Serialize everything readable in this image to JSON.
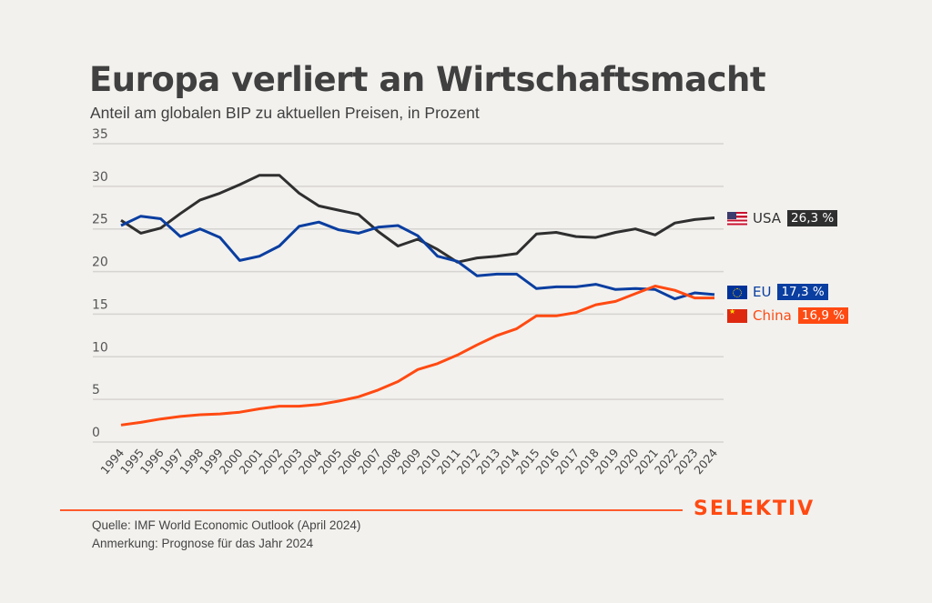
{
  "header": {
    "title": "Europa verliert an Wirtschaftsmacht",
    "subtitle": "Anteil am globalen BIP zu aktuellen Preisen, in Prozent"
  },
  "footer": {
    "source": "Quelle: IMF World Economic Outlook (April 2024)",
    "note": "Anmerkung: Prognose für das Jahr 2024",
    "logo": "SELEKTIV",
    "accent_color": "#ff4a12"
  },
  "legend": [
    {
      "name": "USA",
      "value_label": "26,3 %",
      "flag_icon": "us-flag-icon",
      "color": "#2f2f2f",
      "text_color": "#333333"
    },
    {
      "name": "EU",
      "value_label": "17,3 %",
      "flag_icon": "eu-flag-icon",
      "color": "#0a3ea0",
      "text_color": "#0a3ea0"
    },
    {
      "name": "China",
      "value_label": "16,9 %",
      "flag_icon": "china-flag-icon",
      "color": "#ff4a12",
      "text_color": "#ff4a12"
    }
  ],
  "chart_data": {
    "type": "line",
    "title": "Europa verliert an Wirtschaftsmacht",
    "subtitle": "Anteil am globalen BIP zu aktuellen Preisen, in Prozent",
    "xlabel": "",
    "ylabel": "",
    "ylim": [
      0,
      35
    ],
    "yticks": [
      0,
      5,
      10,
      15,
      20,
      25,
      30,
      35
    ],
    "grid": true,
    "legend_position": "right",
    "x": [
      "1994",
      "1995",
      "1996",
      "1997",
      "1998",
      "1999",
      "2000",
      "2001",
      "2002",
      "2003",
      "2004",
      "2005",
      "2006",
      "2007",
      "2008",
      "2009",
      "2010",
      "2011",
      "2012",
      "2013",
      "2014",
      "2015",
      "2016",
      "2017",
      "2018",
      "2019",
      "2020",
      "2021",
      "2022",
      "2023",
      "2024"
    ],
    "series": [
      {
        "name": "USA",
        "color": "#2f2f2f",
        "values": [
          26.0,
          24.5,
          25.1,
          26.8,
          28.4,
          29.2,
          30.2,
          31.3,
          31.3,
          29.2,
          27.7,
          27.2,
          26.7,
          24.7,
          23.0,
          23.8,
          22.6,
          21.1,
          21.6,
          21.8,
          22.1,
          24.4,
          24.6,
          24.1,
          24.0,
          24.6,
          25.0,
          24.3,
          25.7,
          26.1,
          26.3
        ]
      },
      {
        "name": "EU",
        "color": "#0a3ea0",
        "values": [
          25.4,
          26.5,
          26.2,
          24.1,
          25.0,
          24.0,
          21.3,
          21.8,
          23.0,
          25.3,
          25.8,
          24.9,
          24.5,
          25.2,
          25.4,
          24.2,
          21.8,
          21.2,
          19.5,
          19.7,
          19.7,
          18.0,
          18.2,
          18.2,
          18.5,
          17.9,
          18.0,
          17.9,
          16.8,
          17.5,
          17.3
        ]
      },
      {
        "name": "China",
        "color": "#ff4a12",
        "values": [
          2.0,
          2.3,
          2.7,
          3.0,
          3.2,
          3.3,
          3.5,
          3.9,
          4.2,
          4.2,
          4.4,
          4.8,
          5.3,
          6.1,
          7.1,
          8.5,
          9.2,
          10.2,
          11.4,
          12.5,
          13.3,
          14.8,
          14.8,
          15.2,
          16.1,
          16.5,
          17.4,
          18.3,
          17.8,
          16.9,
          16.9
        ]
      }
    ]
  }
}
